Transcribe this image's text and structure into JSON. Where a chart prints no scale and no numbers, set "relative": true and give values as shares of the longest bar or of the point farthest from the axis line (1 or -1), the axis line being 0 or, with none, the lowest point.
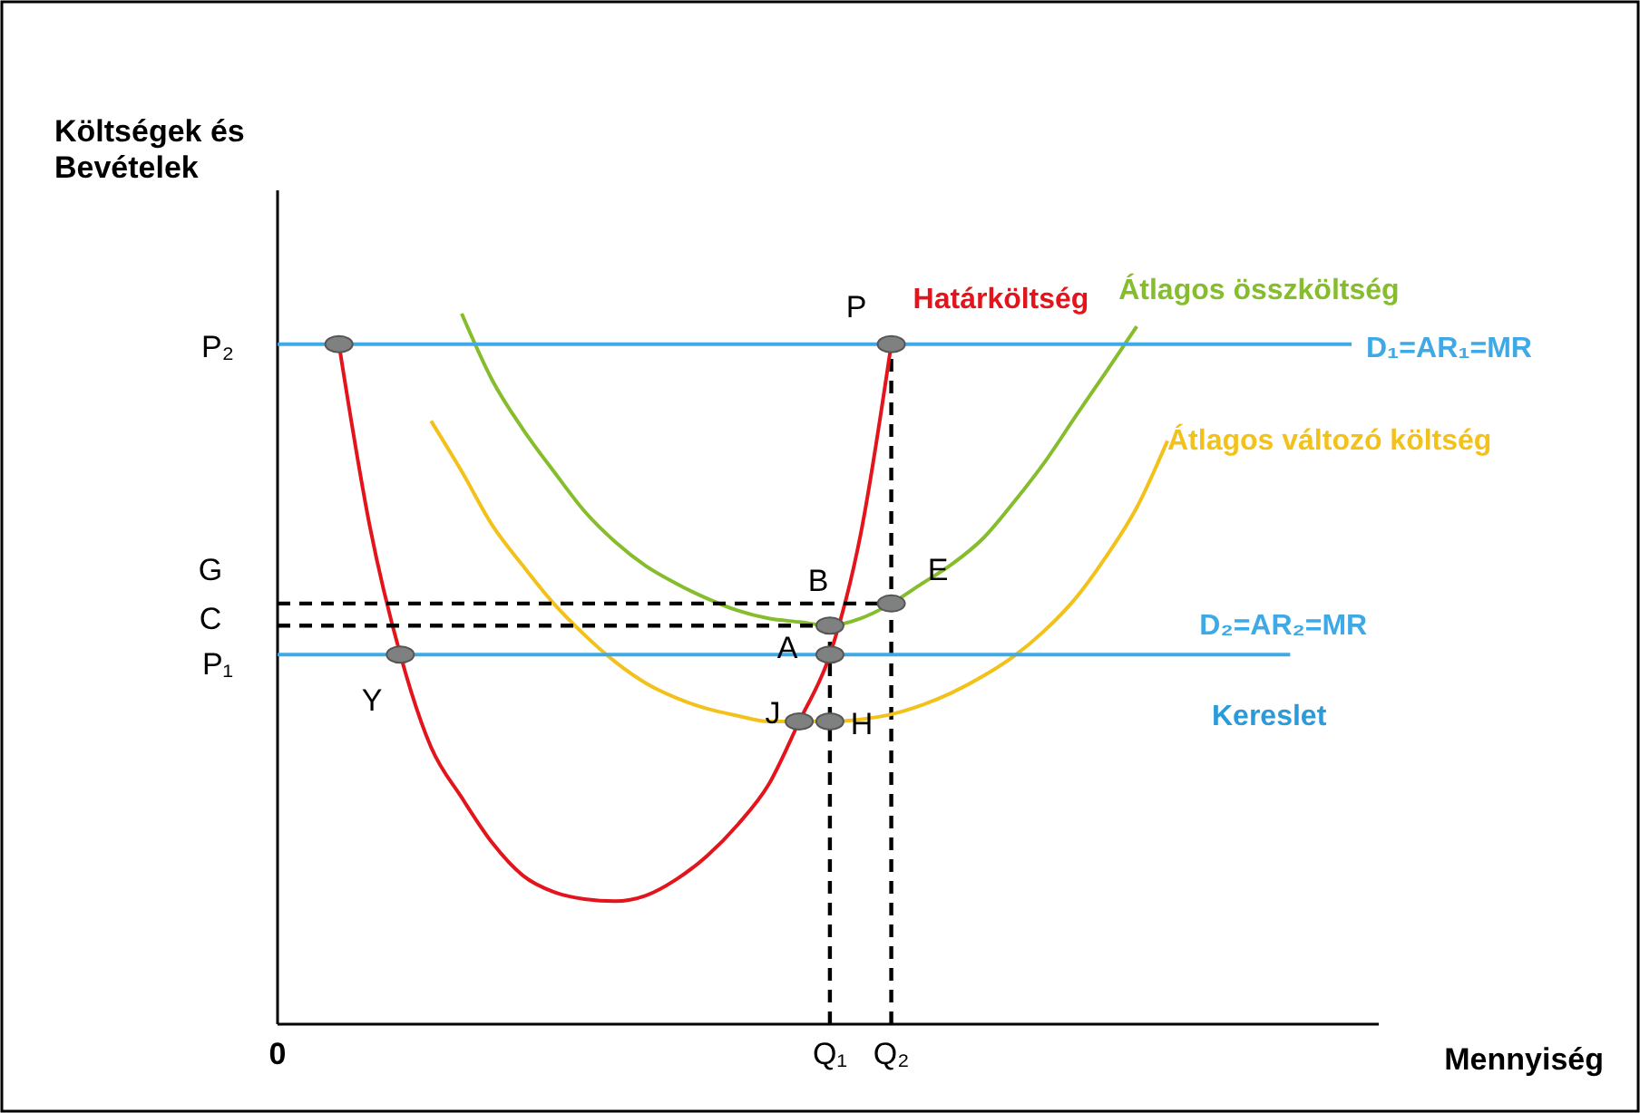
{
  "chart_data": {
    "type": "line",
    "relative": true,
    "xlabel": "Mennyiség",
    "ylabel": "Költségek és Bevételek",
    "categories": [
      "0",
      null,
      null,
      null,
      null,
      null,
      null,
      null,
      null,
      null,
      null,
      null,
      null,
      null,
      null,
      null,
      null,
      null,
      "Q₁",
      null,
      "Q₂",
      null,
      null,
      null,
      null,
      null,
      null,
      null,
      null,
      null,
      null,
      null,
      null,
      null,
      null,
      null
    ],
    "series": [
      {
        "name": "Határköltség",
        "color": "#e3141b",
        "values": [
          null,
          null,
          0.957,
          0.702,
          0.52,
          0.39,
          0.319,
          0.255,
          0.209,
          0.186,
          0.176,
          0.173,
          0.181,
          0.204,
          0.237,
          0.281,
          0.337,
          0.426,
          0.52,
          0.689,
          0.957,
          null,
          null,
          null,
          null,
          null,
          null,
          null,
          null,
          null,
          null,
          null,
          null,
          null,
          null,
          null
        ]
      },
      {
        "name": "Átlagos összköltség",
        "color": "#86bd2c",
        "values": [
          null,
          null,
          null,
          null,
          null,
          null,
          1,
          0.906,
          0.837,
          0.778,
          0.722,
          0.679,
          0.645,
          0.62,
          0.599,
          0.582,
          0.571,
          0.566,
          0.561,
          0.571,
          0.592,
          0.62,
          0.648,
          0.684,
          0.735,
          0.791,
          0.855,
          0.918,
          0.982,
          null,
          null,
          null,
          null,
          null,
          null,
          null
        ]
      },
      {
        "name": "Átlagos változó költség",
        "color": "#f2c11a",
        "values": [
          null,
          null,
          null,
          null,
          null,
          0.849,
          0.778,
          0.702,
          0.645,
          0.592,
          0.548,
          0.51,
          0.48,
          0.459,
          0.444,
          0.434,
          0.426,
          0.426,
          0.426,
          0.429,
          0.436,
          0.449,
          0.467,
          0.49,
          0.518,
          0.554,
          0.599,
          0.658,
          0.727,
          0.821,
          null,
          null,
          null,
          null,
          null,
          null
        ]
      },
      {
        "name": "D₁=AR₁=MR",
        "color": "#3fa9e6",
        "values": [
          0.957,
          0.957,
          0.957,
          0.957,
          0.957,
          0.957,
          0.957,
          0.957,
          0.957,
          0.957,
          0.957,
          0.957,
          0.957,
          0.957,
          0.957,
          0.957,
          0.957,
          0.957,
          0.957,
          0.957,
          0.957,
          0.957,
          0.957,
          0.957,
          0.957,
          0.957,
          0.957,
          0.957,
          0.957,
          0.957,
          0.957,
          0.957,
          0.957,
          0.957,
          0.957,
          0.957
        ]
      },
      {
        "name": "D₂=AR₂=MR",
        "color": "#3fa9e6",
        "values": [
          0.52,
          0.52,
          0.52,
          0.52,
          0.52,
          0.52,
          0.52,
          0.52,
          0.52,
          0.52,
          0.52,
          0.52,
          0.52,
          0.52,
          0.52,
          0.52,
          0.52,
          0.52,
          0.52,
          0.52,
          0.52,
          0.52,
          0.52,
          0.52,
          0.52,
          0.52,
          0.52,
          0.52,
          0.52,
          0.52,
          0.52,
          0.52,
          0.52,
          0.52,
          null,
          null
        ]
      },
      {
        "color": "#000000",
        "line_style": "dashed",
        "values": [
          0.592,
          0.592,
          0.592,
          0.592,
          0.592,
          0.592,
          0.592,
          0.592,
          0.592,
          0.592,
          0.592,
          0.592,
          0.592,
          0.592,
          0.592,
          0.592,
          0.592,
          0.592,
          0.592,
          0.592,
          0.592,
          null,
          null,
          null,
          null,
          null,
          null,
          null,
          null,
          null,
          null,
          null,
          null,
          null,
          null,
          null
        ]
      },
      {
        "color": "#000000",
        "line_style": "dashed",
        "values": [
          0.561,
          0.561,
          0.561,
          0.561,
          0.561,
          0.561,
          0.561,
          0.561,
          0.561,
          0.561,
          0.561,
          0.561,
          0.561,
          0.561,
          0.561,
          0.561,
          0.561,
          0.561,
          0.561,
          null,
          null,
          null,
          null,
          null,
          null,
          null,
          null,
          null,
          null,
          null,
          null,
          null,
          null,
          null,
          null,
          null
        ]
      },
      {
        "type": "scatter",
        "marker": "circle",
        "color": "#7f8080",
        "values": [
          null,
          null,
          0.957,
          null,
          0.52,
          null,
          null,
          null,
          null,
          null,
          null,
          null,
          null,
          null,
          null,
          null,
          null,
          0.426,
          0.426,
          null,
          0.957,
          null,
          null,
          null,
          null,
          null,
          null,
          null,
          null,
          null,
          null,
          null,
          null,
          null,
          null,
          null
        ]
      },
      {
        "type": "scatter",
        "marker": "circle",
        "color": "#7f8080",
        "values": [
          null,
          null,
          null,
          null,
          null,
          null,
          null,
          null,
          null,
          null,
          null,
          null,
          null,
          null,
          null,
          null,
          null,
          null,
          0.561,
          null,
          0.592,
          null,
          null,
          null,
          null,
          null,
          null,
          null,
          null,
          null,
          null,
          null,
          null,
          null,
          null,
          null
        ]
      },
      {
        "type": "scatter",
        "marker": "circle",
        "color": "#7f8080",
        "values": [
          null,
          null,
          null,
          null,
          null,
          null,
          null,
          null,
          null,
          null,
          null,
          null,
          null,
          null,
          null,
          null,
          null,
          null,
          0.52,
          null,
          null,
          null,
          null,
          null,
          null,
          null,
          null,
          null,
          null,
          null,
          null,
          null,
          null,
          null,
          null,
          null
        ]
      }
    ],
    "annotations": [
      "P₂",
      "G",
      "C",
      "P₁",
      "P",
      "E",
      "B",
      "A",
      "Y",
      "J",
      "H",
      "Kereslet"
    ]
  }
}
